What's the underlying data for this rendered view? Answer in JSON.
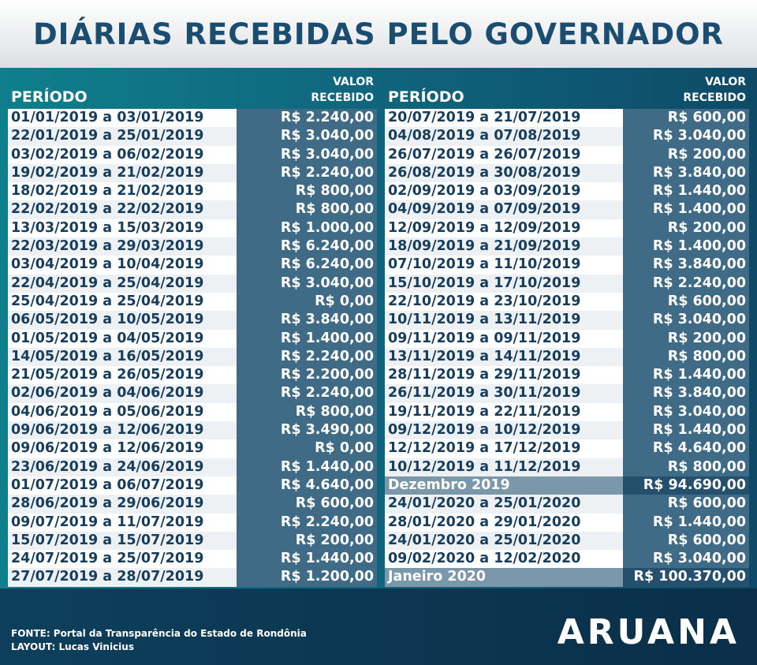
{
  "title": "DIÁRIAS RECEBIDAS PELO GOVERNADOR",
  "headers": {
    "period": "PERÍODO",
    "value_line1": "VALOR",
    "value_line2": "RECEBIDO"
  },
  "left_rows": [
    [
      "01/01/2019 a 03/01/2019",
      "R$ 2.240,00"
    ],
    [
      "22/01/2019 a 25/01/2019",
      "R$ 3.040,00"
    ],
    [
      "03/02/2019 a 06/02/2019",
      "R$ 3.040,00"
    ],
    [
      "19/02/2019 a 21/02/2019",
      "R$ 2.240,00"
    ],
    [
      "18/02/2019 a 21/02/2019",
      "R$ 800,00"
    ],
    [
      "22/02/2019 a 22/02/2019",
      "R$ 800,00"
    ],
    [
      "13/03/2019 a 15/03/2019",
      "R$ 1.000,00"
    ],
    [
      "22/03/2019 a 29/03/2019",
      "R$ 6.240,00"
    ],
    [
      "03/04/2019 a 10/04/2019",
      "R$ 6.240,00"
    ],
    [
      "22/04/2019 a 25/04/2019",
      "R$ 3.040,00"
    ],
    [
      "25/04/2019 a 25/04/2019",
      "R$ 0,00"
    ],
    [
      "06/05/2019 a 10/05/2019",
      "R$ 3.840,00"
    ],
    [
      "01/05/2019 a 04/05/2019",
      "R$ 1.400,00"
    ],
    [
      "14/05/2019 a 16/05/2019",
      "R$ 2.240,00"
    ],
    [
      "21/05/2019 a 26/05/2019",
      "R$ 2.200,00"
    ],
    [
      "02/06/2019 a 04/06/2019",
      "R$ 2.240,00"
    ],
    [
      "04/06/2019 a 05/06/2019",
      "R$ 800,00"
    ],
    [
      "09/06/2019 a 12/06/2019",
      "R$ 3.490,00"
    ],
    [
      "09/06/2019 a 12/06/2019",
      "R$ 0,00"
    ],
    [
      "23/06/2019 a 24/06/2019",
      "R$ 1.440,00"
    ],
    [
      "01/07/2019 a 06/07/2019",
      "R$ 4.640,00"
    ],
    [
      "28/06/2019 a 29/06/2019",
      "R$ 600,00"
    ],
    [
      "09/07/2019 a 11/07/2019",
      "R$ 2.240,00"
    ],
    [
      "15/07/2019 a 15/07/2019",
      "R$ 200,00"
    ],
    [
      "24/07/2019 a 25/07/2019",
      "R$ 1.440,00"
    ],
    [
      "27/07/2019 a 28/07/2019",
      "R$ 1.200,00"
    ]
  ],
  "right_rows": [
    [
      "20/07/2019 a 21/07/2019",
      "R$ 600,00"
    ],
    [
      "04/08/2019 a 07/08/2019",
      "R$ 3.040,00"
    ],
    [
      "26/07/2019 a 26/07/2019",
      "R$ 200,00"
    ],
    [
      "26/08/2019 a 30/08/2019",
      "R$ 3.840,00"
    ],
    [
      "02/09/2019 a 03/09/2019",
      "R$ 1.440,00"
    ],
    [
      "04/09/2019 a 07/09/2019",
      "R$ 1.400,00"
    ],
    [
      "12/09/2019 a 12/09/2019",
      "R$ 200,00"
    ],
    [
      "18/09/2019 a 21/09/2019",
      "R$ 1.400,00"
    ],
    [
      "07/10/2019 a 11/10/2019",
      "R$ 3.840,00"
    ],
    [
      "15/10/2019 a 17/10/2019",
      "R$ 2.240,00"
    ],
    [
      "22/10/2019 a 23/10/2019",
      "R$ 600,00"
    ],
    [
      "10/11/2019 a 13/11/2019",
      "R$ 3.040,00"
    ],
    [
      "09/11/2019 a 09/11/2019",
      "R$ 200,00"
    ],
    [
      "13/11/2019 a 14/11/2019",
      "R$ 800,00"
    ],
    [
      "28/11/2019 a 29/11/2019",
      "R$ 1.440,00"
    ],
    [
      "26/11/2019 a 30/11/2019",
      "R$ 3.840,00"
    ],
    [
      "19/11/2019 a 22/11/2019",
      "R$ 3.040,00"
    ],
    [
      "09/12/2019 a 10/12/2019",
      "R$ 1.440,00"
    ],
    [
      "12/12/2019 a 17/12/2019",
      "R$ 4.640,00"
    ],
    [
      "10/12/2019 a 11/12/2019",
      "R$ 800,00"
    ],
    [
      "Dezembro 2019",
      "R$ 94.690,00",
      "sum"
    ],
    [
      "24/01/2020 a 25/01/2020",
      "R$ 600,00"
    ],
    [
      "28/01/2020 a 29/01/2020",
      "R$ 1.440,00"
    ],
    [
      "24/01/2020 a 25/01/2020",
      "R$ 600,00"
    ],
    [
      "09/02/2020 a 12/02/2020",
      "R$ 3.040,00"
    ],
    [
      "Janeiro 2020",
      "R$ 100.370,00",
      "sum"
    ]
  ],
  "footer": {
    "source": "FONTE: Portal da Transparência do Estado de Rondônia",
    "layout": "LAYOUT: Lucas Vinicius",
    "logo": "ARUANA"
  }
}
